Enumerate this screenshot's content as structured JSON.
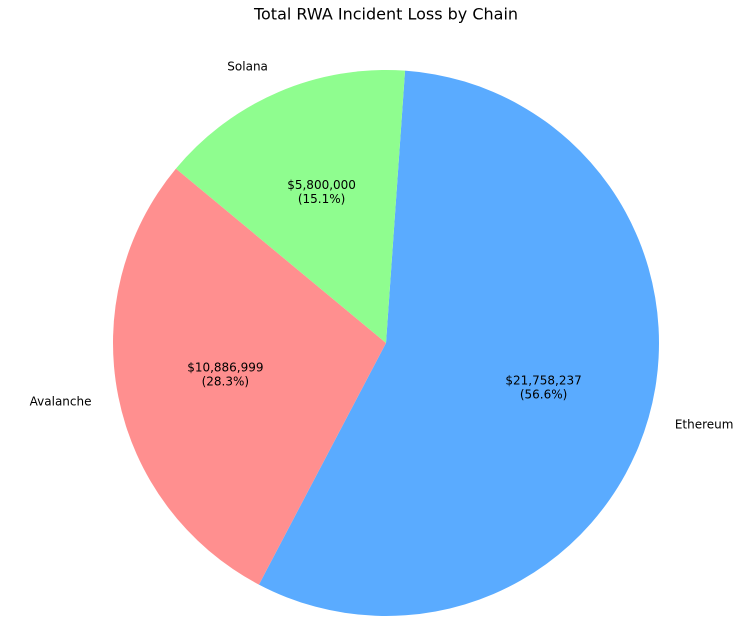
{
  "chart_data": {
    "type": "pie",
    "title": "Total RWA Incident Loss by Chain",
    "categories": [
      "Ethereum",
      "Avalanche",
      "Solana"
    ],
    "values": [
      21758237,
      10886999,
      5800000
    ],
    "value_labels": [
      "$21,758,237",
      "$10,886,999",
      "$5,800,000"
    ],
    "percent_labels": [
      "(56.6%)",
      "(28.3%)",
      "(15.1%)"
    ],
    "colors": [
      "#5aabff",
      "#ff8f8f",
      "#8ffd8f"
    ]
  }
}
